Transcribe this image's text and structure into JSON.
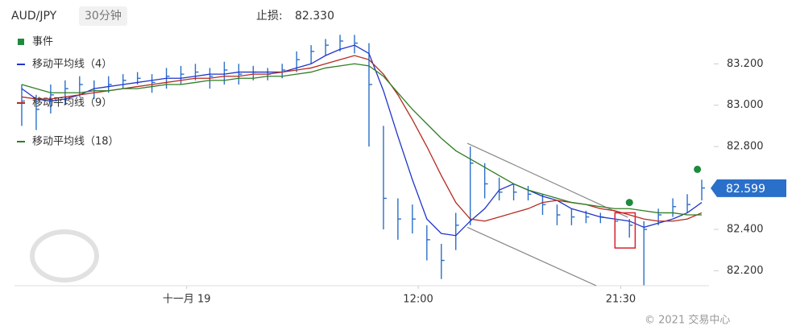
{
  "header": {
    "symbol": "AUD/JPY",
    "timeframe": "30分钟",
    "stop_loss_label": "止损:",
    "stop_loss": "82.330"
  },
  "chart_data": {
    "type": "hlc",
    "xlim": [
      -0.5,
      47.5
    ],
    "ylim": [
      82.12,
      83.38
    ],
    "xticks": [
      {
        "value": 11.4,
        "label": "十一月 19"
      },
      {
        "value": 27.4,
        "label": "12:00"
      },
      {
        "value": 41.4,
        "label": "21:30"
      }
    ],
    "yticks": [
      {
        "value": 82.2,
        "label": "82.200"
      },
      {
        "value": 82.4,
        "label": "82.400"
      },
      {
        "value": 82.6,
        "label": "82.600"
      },
      {
        "value": 82.8,
        "label": "82.800"
      },
      {
        "value": 83.0,
        "label": "83.000"
      },
      {
        "value": 83.2,
        "label": "83.200"
      }
    ],
    "last_price": 82.599,
    "bars": {
      "color": "#2a6fc9",
      "high": [
        83.1,
        83.05,
        83.1,
        83.12,
        83.14,
        83.12,
        83.14,
        83.15,
        83.16,
        83.15,
        83.18,
        83.19,
        83.2,
        83.18,
        83.21,
        83.2,
        83.19,
        83.18,
        83.2,
        83.26,
        83.29,
        83.32,
        83.34,
        83.34,
        83.3,
        82.9,
        82.55,
        82.52,
        82.42,
        82.33,
        82.48,
        82.8,
        82.72,
        82.65,
        82.62,
        82.61,
        82.57,
        82.52,
        82.5,
        82.49,
        82.48,
        82.47,
        82.45,
        82.44,
        82.5,
        82.55,
        82.57,
        82.64
      ],
      "low": [
        82.9,
        82.88,
        82.96,
        83.0,
        83.04,
        83.03,
        83.06,
        83.08,
        83.1,
        83.06,
        83.08,
        83.1,
        83.12,
        83.08,
        83.1,
        83.1,
        83.12,
        83.12,
        83.13,
        83.16,
        83.2,
        83.24,
        83.26,
        83.25,
        82.8,
        82.4,
        82.35,
        82.38,
        82.25,
        82.16,
        82.3,
        82.42,
        82.55,
        82.54,
        82.54,
        82.54,
        82.47,
        82.42,
        82.42,
        82.43,
        82.43,
        82.38,
        82.36,
        82.13,
        82.42,
        82.46,
        82.48,
        82.54
      ],
      "close": [
        83.02,
        82.98,
        83.05,
        83.08,
        83.1,
        83.07,
        83.1,
        83.12,
        83.13,
        83.11,
        83.14,
        83.15,
        83.16,
        83.14,
        83.17,
        83.15,
        83.16,
        83.15,
        83.17,
        83.22,
        83.26,
        83.29,
        83.31,
        83.3,
        83.1,
        82.55,
        82.45,
        82.45,
        82.35,
        82.25,
        82.42,
        82.72,
        82.62,
        82.58,
        82.58,
        82.57,
        82.52,
        82.47,
        82.46,
        82.46,
        82.46,
        82.44,
        82.42,
        82.4,
        82.47,
        82.51,
        82.52,
        82.6
      ]
    },
    "events": {
      "name": "事件",
      "color": "#1e8a3e",
      "x": [
        42.0,
        46.7
      ],
      "y": [
        82.53,
        82.69
      ]
    },
    "series": [
      {
        "name": "移动平均线（4）",
        "color": "#1f35c8",
        "values": [
          83.08,
          83.03,
          83.02,
          83.03,
          83.05,
          83.08,
          83.09,
          83.1,
          83.11,
          83.12,
          83.13,
          83.13,
          83.14,
          83.15,
          83.15,
          83.16,
          83.16,
          83.16,
          83.16,
          83.18,
          83.2,
          83.24,
          83.27,
          83.29,
          83.25,
          83.07,
          82.85,
          82.64,
          82.45,
          82.38,
          82.37,
          82.44,
          82.5,
          82.59,
          82.62,
          82.59,
          82.56,
          82.54,
          82.5,
          82.48,
          82.46,
          82.45,
          82.44,
          82.41,
          82.43,
          82.45,
          82.48,
          82.53
        ]
      },
      {
        "name": "移动平均线（9）",
        "color": "#b52a20",
        "values": [
          83.04,
          83.03,
          83.03,
          83.04,
          83.05,
          83.06,
          83.07,
          83.08,
          83.09,
          83.1,
          83.11,
          83.12,
          83.13,
          83.13,
          83.14,
          83.14,
          83.15,
          83.15,
          83.16,
          83.17,
          83.18,
          83.2,
          83.22,
          83.24,
          83.22,
          83.15,
          83.05,
          82.93,
          82.8,
          82.66,
          82.53,
          82.45,
          82.44,
          82.46,
          82.48,
          82.5,
          82.53,
          82.54,
          82.53,
          82.52,
          82.5,
          82.49,
          82.47,
          82.45,
          82.44,
          82.44,
          82.45,
          82.48
        ]
      },
      {
        "name": "移动平均线（18）",
        "color": "#2f7d23",
        "values": [
          83.1,
          83.08,
          83.06,
          83.06,
          83.06,
          83.07,
          83.07,
          83.08,
          83.08,
          83.09,
          83.1,
          83.1,
          83.11,
          83.12,
          83.12,
          83.13,
          83.13,
          83.14,
          83.14,
          83.15,
          83.16,
          83.18,
          83.19,
          83.2,
          83.19,
          83.14,
          83.06,
          82.98,
          82.91,
          82.84,
          82.78,
          82.74,
          82.7,
          82.66,
          82.62,
          82.59,
          82.57,
          82.55,
          82.53,
          82.52,
          82.51,
          82.5,
          82.5,
          82.49,
          82.48,
          82.48,
          82.47,
          82.47
        ]
      }
    ],
    "trendlines": [
      {
        "x": [
          30.8,
          41.9
        ],
        "y": [
          82.816,
          82.458
        ]
      },
      {
        "x": [
          30.8,
          39.7
        ],
        "y": [
          82.41,
          82.128
        ]
      }
    ],
    "highlight": {
      "x": [
        41.0,
        42.4
      ],
      "y": [
        82.31,
        82.48
      ],
      "color": "#d9232d"
    }
  },
  "footer": {
    "copyright": "© 2021 交易中心"
  }
}
